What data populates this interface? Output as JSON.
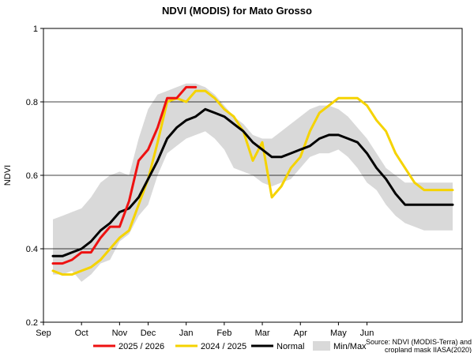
{
  "chart_data": {
    "type": "line",
    "title": "NDVI (MODIS) for Mato Grosso",
    "xlabel": "",
    "ylabel": "NDVI",
    "ylim": [
      0.2,
      1.0
    ],
    "yticks": [
      "0.2",
      "0.4",
      "0.6",
      "0.8",
      "1"
    ],
    "ytick_values": [
      0.2,
      0.4,
      0.6,
      0.8,
      1.0
    ],
    "xlim": [
      0,
      22
    ],
    "xticks": [
      {
        "label": "Sep",
        "x": 0
      },
      {
        "label": "Oct",
        "x": 2
      },
      {
        "label": "Nov",
        "x": 4
      },
      {
        "label": "Dec",
        "x": 5.5
      },
      {
        "label": "Jan",
        "x": 7.5
      },
      {
        "label": "Feb",
        "x": 9.5
      },
      {
        "label": "Mar",
        "x": 11.5
      },
      {
        "label": "Apr",
        "x": 13.5
      },
      {
        "label": "May",
        "x": 15.5
      },
      {
        "label": "Jun",
        "x": 17
      }
    ],
    "grid": {
      "horizontal": true,
      "vertical": false
    },
    "legend_position": "bottom",
    "source_lines": [
      "Source: NDVI (MODIS-Terra) and",
      "cropland mask IIASA(2020)"
    ],
    "series": [
      {
        "name": "2025 / 2026",
        "color": "#ee1111",
        "x": [
          0.5,
          1,
          1.5,
          2,
          2.5,
          3,
          3.5,
          4,
          4.5,
          5,
          5.5,
          6,
          6.5,
          7,
          7.5,
          8
        ],
        "y": [
          0.36,
          0.36,
          0.37,
          0.39,
          0.39,
          0.43,
          0.46,
          0.46,
          0.53,
          0.64,
          0.67,
          0.73,
          0.81,
          0.81,
          0.84,
          0.84
        ]
      },
      {
        "name": "2024 / 2025",
        "color": "#f5d300",
        "x": [
          0.5,
          1,
          1.5,
          2,
          2.5,
          3,
          3.5,
          4,
          4.5,
          5,
          5.5,
          6,
          6.5,
          7,
          7.5,
          8,
          8.5,
          9,
          9.5,
          10,
          10.5,
          11,
          11.5,
          12,
          12.5,
          13,
          13.5,
          14,
          14.5,
          15,
          15.5,
          16,
          16.5,
          17,
          17.5,
          18,
          18.5,
          19,
          19.5,
          20,
          20.5,
          21,
          21.5
        ],
        "y": [
          0.34,
          0.33,
          0.33,
          0.34,
          0.35,
          0.37,
          0.4,
          0.43,
          0.45,
          0.52,
          0.59,
          0.69,
          0.8,
          0.81,
          0.8,
          0.83,
          0.83,
          0.81,
          0.78,
          0.76,
          0.72,
          0.64,
          0.69,
          0.54,
          0.57,
          0.62,
          0.65,
          0.72,
          0.77,
          0.79,
          0.81,
          0.81,
          0.81,
          0.79,
          0.75,
          0.72,
          0.66,
          0.62,
          0.58,
          0.56,
          0.56,
          0.56,
          0.56
        ]
      },
      {
        "name": "Normal",
        "color": "#000000",
        "x": [
          0.5,
          1,
          1.5,
          2,
          2.5,
          3,
          3.5,
          4,
          4.5,
          5,
          5.5,
          6,
          6.5,
          7,
          7.5,
          8,
          8.5,
          9,
          9.5,
          10,
          10.5,
          11,
          11.5,
          12,
          12.5,
          13,
          13.5,
          14,
          14.5,
          15,
          15.5,
          16,
          16.5,
          17,
          17.5,
          18,
          18.5,
          19,
          19.5,
          20,
          20.5,
          21,
          21.5
        ],
        "y": [
          0.38,
          0.38,
          0.39,
          0.4,
          0.42,
          0.45,
          0.47,
          0.5,
          0.51,
          0.54,
          0.59,
          0.64,
          0.7,
          0.73,
          0.75,
          0.76,
          0.78,
          0.77,
          0.76,
          0.74,
          0.72,
          0.69,
          0.67,
          0.65,
          0.65,
          0.66,
          0.67,
          0.68,
          0.7,
          0.71,
          0.71,
          0.7,
          0.69,
          0.66,
          0.62,
          0.59,
          0.55,
          0.52,
          0.52,
          0.52,
          0.52,
          0.52,
          0.52
        ]
      }
    ],
    "band": {
      "name": "Min/Max",
      "color": "#d9d9d9",
      "x": [
        0.5,
        1,
        1.5,
        2,
        2.5,
        3,
        3.5,
        4,
        4.5,
        5,
        5.5,
        6,
        6.5,
        7,
        7.5,
        8,
        8.5,
        9,
        9.5,
        10,
        10.5,
        11,
        11.5,
        12,
        12.5,
        13,
        13.5,
        14,
        14.5,
        15,
        15.5,
        16,
        16.5,
        17,
        17.5,
        18,
        18.5,
        19,
        19.5,
        20,
        20.5,
        21,
        21.5
      ],
      "min": [
        0.33,
        0.33,
        0.34,
        0.31,
        0.33,
        0.36,
        0.37,
        0.42,
        0.44,
        0.49,
        0.52,
        0.6,
        0.66,
        0.68,
        0.7,
        0.71,
        0.72,
        0.7,
        0.67,
        0.62,
        0.61,
        0.6,
        0.58,
        0.57,
        0.58,
        0.59,
        0.62,
        0.65,
        0.66,
        0.66,
        0.67,
        0.65,
        0.62,
        0.58,
        0.56,
        0.52,
        0.49,
        0.47,
        0.46,
        0.45,
        0.45,
        0.45,
        0.45
      ],
      "max": [
        0.48,
        0.49,
        0.5,
        0.51,
        0.54,
        0.58,
        0.6,
        0.61,
        0.6,
        0.7,
        0.78,
        0.82,
        0.83,
        0.84,
        0.85,
        0.85,
        0.84,
        0.82,
        0.79,
        0.76,
        0.74,
        0.71,
        0.7,
        0.7,
        0.72,
        0.74,
        0.76,
        0.78,
        0.79,
        0.79,
        0.78,
        0.76,
        0.73,
        0.7,
        0.66,
        0.62,
        0.6,
        0.58,
        0.58,
        0.58,
        0.58,
        0.58,
        0.58
      ]
    }
  }
}
